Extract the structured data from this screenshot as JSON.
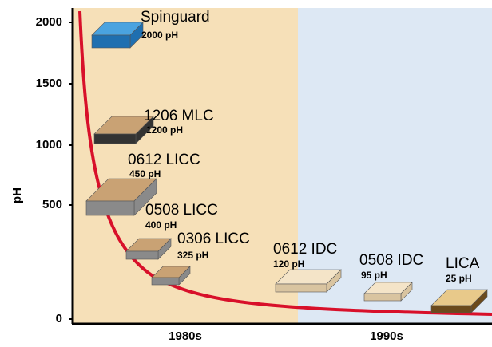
{
  "chart_data": {
    "type": "illustration",
    "y_label": "pH",
    "yticks": [
      0,
      500,
      1000,
      1500,
      2000
    ],
    "periods": [
      "1980s",
      "1990s"
    ],
    "period_colors": [
      "#f6e0b8",
      "#dde8f4"
    ],
    "curve_color": "#d8102a",
    "categories": [
      "Spinguard",
      "1206 MLC",
      "0612 LICC",
      "0508 LICC",
      "0306 LICC",
      "0612 IDC",
      "0508 IDC",
      "LICA"
    ],
    "values": [
      2000,
      1200,
      450,
      400,
      325,
      120,
      95,
      25
    ],
    "value_labels": [
      "2000 pH",
      "1200 pH",
      "450 pH",
      "400 pH",
      "325 pH",
      "120 pH",
      "95 pH",
      "25 pH"
    ]
  }
}
